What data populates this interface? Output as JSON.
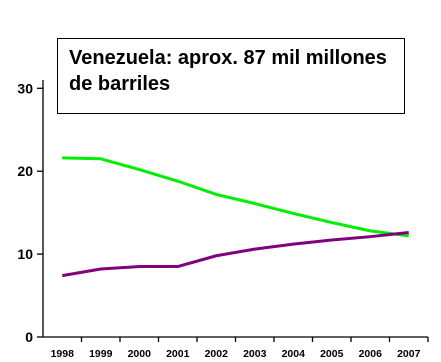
{
  "chart_data": {
    "type": "line",
    "title": "Venezuela: aprox. 87 mil millones de barriles",
    "x": [
      "1998",
      "1999",
      "2000",
      "2001",
      "2002",
      "2003",
      "2004",
      "2005",
      "2006",
      "2007"
    ],
    "yticks": [
      0,
      10,
      20,
      30
    ],
    "ylim": [
      0,
      31
    ],
    "grid": false,
    "legend": "none",
    "series": [
      {
        "color": "#00ee00",
        "values": [
          21.6,
          21.5,
          20.2,
          18.8,
          17.2,
          16.1,
          14.9,
          13.8,
          12.8,
          12.2
        ]
      },
      {
        "color": "#800080",
        "values": [
          7.4,
          8.2,
          8.5,
          8.5,
          9.8,
          10.6,
          11.2,
          11.7,
          12.1,
          12.6
        ]
      }
    ]
  }
}
